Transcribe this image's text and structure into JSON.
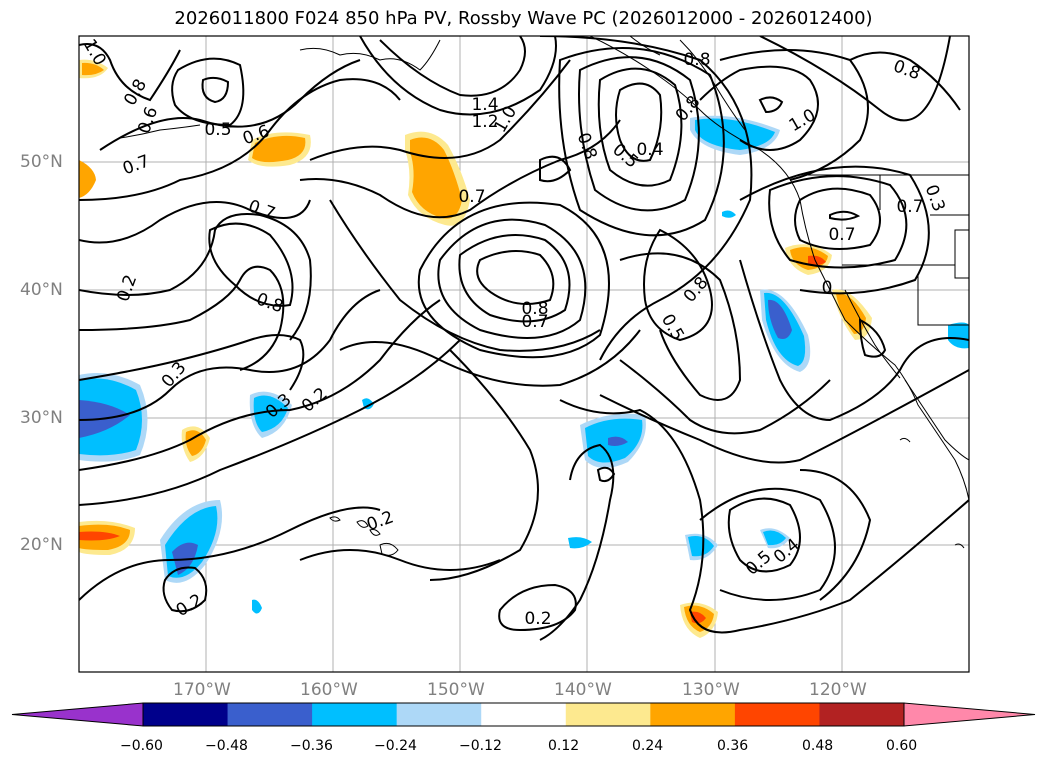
{
  "title": "2026011800 F024 850 hPa PV, Rossby Wave PC (2026012000 - 2026012400)",
  "map": {
    "lon_labels": [
      "170°W",
      "160°W",
      "150°W",
      "140°W",
      "130°W",
      "120°W"
    ],
    "lat_labels": [
      "50°N",
      "40°N",
      "30°N",
      "20°N"
    ]
  },
  "contour_labels": [
    {
      "text": "1.0"
    },
    {
      "text": "0.8"
    },
    {
      "text": "0.6"
    },
    {
      "text": "0.5"
    },
    {
      "text": "0.6"
    },
    {
      "text": "0.7"
    },
    {
      "text": "0.7"
    },
    {
      "text": "1.4"
    },
    {
      "text": "1.2"
    },
    {
      "text": "1.0"
    },
    {
      "text": "0.7"
    },
    {
      "text": "0.8"
    },
    {
      "text": "0.5"
    },
    {
      "text": "0.4"
    },
    {
      "text": "0.8"
    },
    {
      "text": "0.8"
    },
    {
      "text": "0.8"
    },
    {
      "text": "1.0"
    },
    {
      "text": "0.3"
    },
    {
      "text": "0.7"
    },
    {
      "text": "0.7"
    },
    {
      "text": "0.2"
    },
    {
      "text": "0.8"
    },
    {
      "text": "0.8"
    },
    {
      "text": "0.7"
    },
    {
      "text": "0.8"
    },
    {
      "text": "0.5"
    },
    {
      "text": "0"
    },
    {
      "text": "0.3"
    },
    {
      "text": "0.3"
    },
    {
      "text": "0.2"
    },
    {
      "text": "0.2"
    },
    {
      "text": "0.5"
    },
    {
      "text": "0.4"
    },
    {
      "text": "0.2"
    },
    {
      "text": "0.2"
    }
  ],
  "colorbar": {
    "colors": [
      "#9932cc",
      "#00008b",
      "#3a5fcd",
      "#00bfff",
      "#add8f7",
      "#ffffff",
      "#fde98f",
      "#ffa500",
      "#ff4500",
      "#b22222",
      "#ff88aa"
    ],
    "labels": [
      "−0.60",
      "−0.48",
      "−0.36",
      "−0.24",
      "−0.12",
      "0.12",
      "0.24",
      "0.36",
      "0.48",
      "0.60"
    ]
  }
}
